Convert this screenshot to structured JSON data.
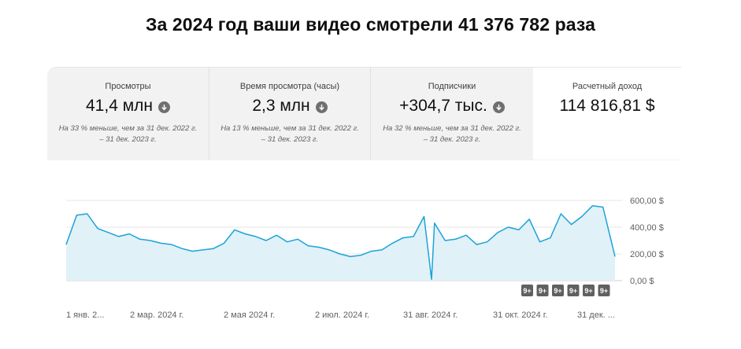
{
  "headline": "За 2024 год ваши видео смотрели 41 376 782 раза",
  "tabs": [
    {
      "label": "Просмотры",
      "value": "41,4 млн",
      "trend": "down",
      "note1": "На 33 % меньше, чем за 31 дек. 2022 г.",
      "note2": "– 31 дек. 2023 г."
    },
    {
      "label": "Время просмотра (часы)",
      "value": "2,3 млн",
      "trend": "down",
      "note1": "На 13 % меньше, чем за 31 дек. 2022 г.",
      "note2": "– 31 дек. 2023 г."
    },
    {
      "label": "Подписчики",
      "value": "+304,7 тыс.",
      "trend": "down",
      "note1": "На 32 % меньше, чем за 31 дек. 2022 г.",
      "note2": "– 31 дек. 2023 г."
    },
    {
      "label": "Расчетный доход",
      "value": "114 816,81 $",
      "trend": "",
      "note1": "",
      "note2": ""
    }
  ],
  "colors": {
    "line": "#1aa3d9",
    "fill": "#e1f1f8",
    "badge": "#606060"
  },
  "badges": [
    "9+",
    "9+",
    "9+",
    "9+",
    "9+",
    "9+"
  ],
  "chart_data": {
    "type": "area",
    "ylabel": "",
    "ylim": [
      0,
      600
    ],
    "y_ticks": [
      0,
      200,
      400,
      600
    ],
    "y_tick_labels": [
      "0,00 $",
      "200,00 $",
      "400,00 $",
      "600,00 $"
    ],
    "x_tick_labels": [
      "1 янв. 2...",
      "2 мар. 2024 г.",
      "2 мая 2024 г.",
      "2 июл. 2024 г.",
      "31 авг. 2024 г.",
      "31 окт. 2024 г.",
      "31 дек. ..."
    ],
    "grid": true,
    "series": [
      {
        "x": [
          "2024-01-01",
          "2024-01-08",
          "2024-01-15",
          "2024-01-22",
          "2024-01-29",
          "2024-02-05",
          "2024-02-12",
          "2024-02-19",
          "2024-02-26",
          "2024-03-04",
          "2024-03-11",
          "2024-03-18",
          "2024-03-25",
          "2024-04-01",
          "2024-04-08",
          "2024-04-15",
          "2024-04-22",
          "2024-04-29",
          "2024-05-06",
          "2024-05-13",
          "2024-05-20",
          "2024-05-27",
          "2024-06-03",
          "2024-06-10",
          "2024-06-17",
          "2024-06-24",
          "2024-07-01",
          "2024-07-08",
          "2024-07-15",
          "2024-07-22",
          "2024-07-29",
          "2024-08-05",
          "2024-08-12",
          "2024-08-19",
          "2024-08-26",
          "2024-08-31",
          "2024-09-02",
          "2024-09-09",
          "2024-09-16",
          "2024-09-23",
          "2024-09-30",
          "2024-10-07",
          "2024-10-14",
          "2024-10-21",
          "2024-10-28",
          "2024-11-04",
          "2024-11-11",
          "2024-11-18",
          "2024-11-25",
          "2024-12-02",
          "2024-12-09",
          "2024-12-16",
          "2024-12-23",
          "2024-12-31"
        ],
        "values": [
          270,
          490,
          500,
          390,
          360,
          330,
          350,
          310,
          300,
          280,
          270,
          240,
          220,
          230,
          240,
          280,
          380,
          350,
          330,
          300,
          340,
          290,
          310,
          260,
          250,
          230,
          200,
          180,
          190,
          220,
          230,
          280,
          320,
          330,
          480,
          10,
          430,
          300,
          310,
          340,
          270,
          290,
          360,
          400,
          380,
          460,
          290,
          320,
          500,
          420,
          480,
          560,
          550,
          180
        ]
      }
    ]
  }
}
